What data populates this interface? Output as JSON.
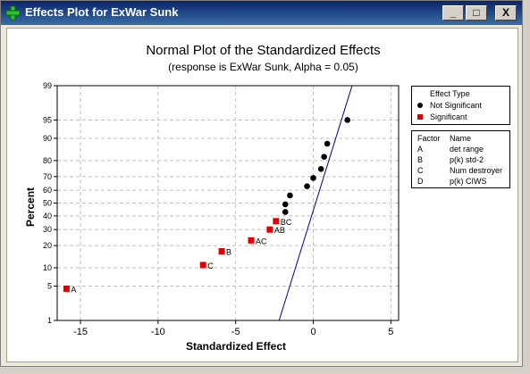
{
  "window": {
    "title": "Effects Plot for ExWar Sunk",
    "minimize_label": "_",
    "maximize_label": "□",
    "close_label": "X"
  },
  "plot": {
    "title": "Normal Plot of the Standardized Effects",
    "subtitle": "(response is ExWar Sunk, Alpha = 0.05)",
    "xlabel": "Standardized Effect",
    "ylabel": "Percent"
  },
  "legend": {
    "effect_type_title": "Effect Type",
    "not_significant_label": "Not Significant",
    "significant_label": "Significant",
    "factor_header": "Factor",
    "name_header": "Name",
    "factors": [
      {
        "factor": "A",
        "name": "det range"
      },
      {
        "factor": "B",
        "name": "p(k) std-2"
      },
      {
        "factor": "C",
        "name": "Num destroyer"
      },
      {
        "factor": "D",
        "name": "p(k) CIWS"
      }
    ]
  },
  "chart_data": {
    "type": "scatter",
    "title": "Normal Plot of the Standardized Effects",
    "subtitle": "(response is ExWar Sunk, Alpha = 0.05)",
    "xlabel": "Standardized Effect",
    "ylabel": "Percent",
    "xlim": [
      -16.5,
      5.5
    ],
    "x_ticks": [
      -15,
      -10,
      -5,
      0,
      5
    ],
    "y_ticks": [
      1,
      5,
      10,
      20,
      30,
      40,
      50,
      60,
      70,
      80,
      90,
      95,
      99
    ],
    "grid": true,
    "legend_position": "right",
    "colors": {
      "significant": "#e00000",
      "not_significant": "#000000",
      "fit_line": "#00008b"
    },
    "fit_line": {
      "x": [
        -2.2,
        2.5
      ],
      "y": [
        1,
        99
      ]
    },
    "series": [
      {
        "name": "Significant",
        "points": [
          {
            "x": -15.9,
            "y": 4.5,
            "label": "A"
          },
          {
            "x": -7.1,
            "y": 11,
            "label": "C"
          },
          {
            "x": -5.9,
            "y": 17,
            "label": "B"
          },
          {
            "x": -4.0,
            "y": 23,
            "label": "AC"
          },
          {
            "x": -2.8,
            "y": 30,
            "label": "AB"
          },
          {
            "x": -2.4,
            "y": 36,
            "label": "BC"
          }
        ]
      },
      {
        "name": "Not Significant",
        "points": [
          {
            "x": -1.8,
            "y": 43
          },
          {
            "x": -1.8,
            "y": 49
          },
          {
            "x": -1.5,
            "y": 56
          },
          {
            "x": -0.4,
            "y": 63
          },
          {
            "x": 0.0,
            "y": 69
          },
          {
            "x": 0.5,
            "y": 75
          },
          {
            "x": 0.7,
            "y": 82
          },
          {
            "x": 0.9,
            "y": 88
          },
          {
            "x": 2.2,
            "y": 95
          }
        ]
      }
    ]
  }
}
